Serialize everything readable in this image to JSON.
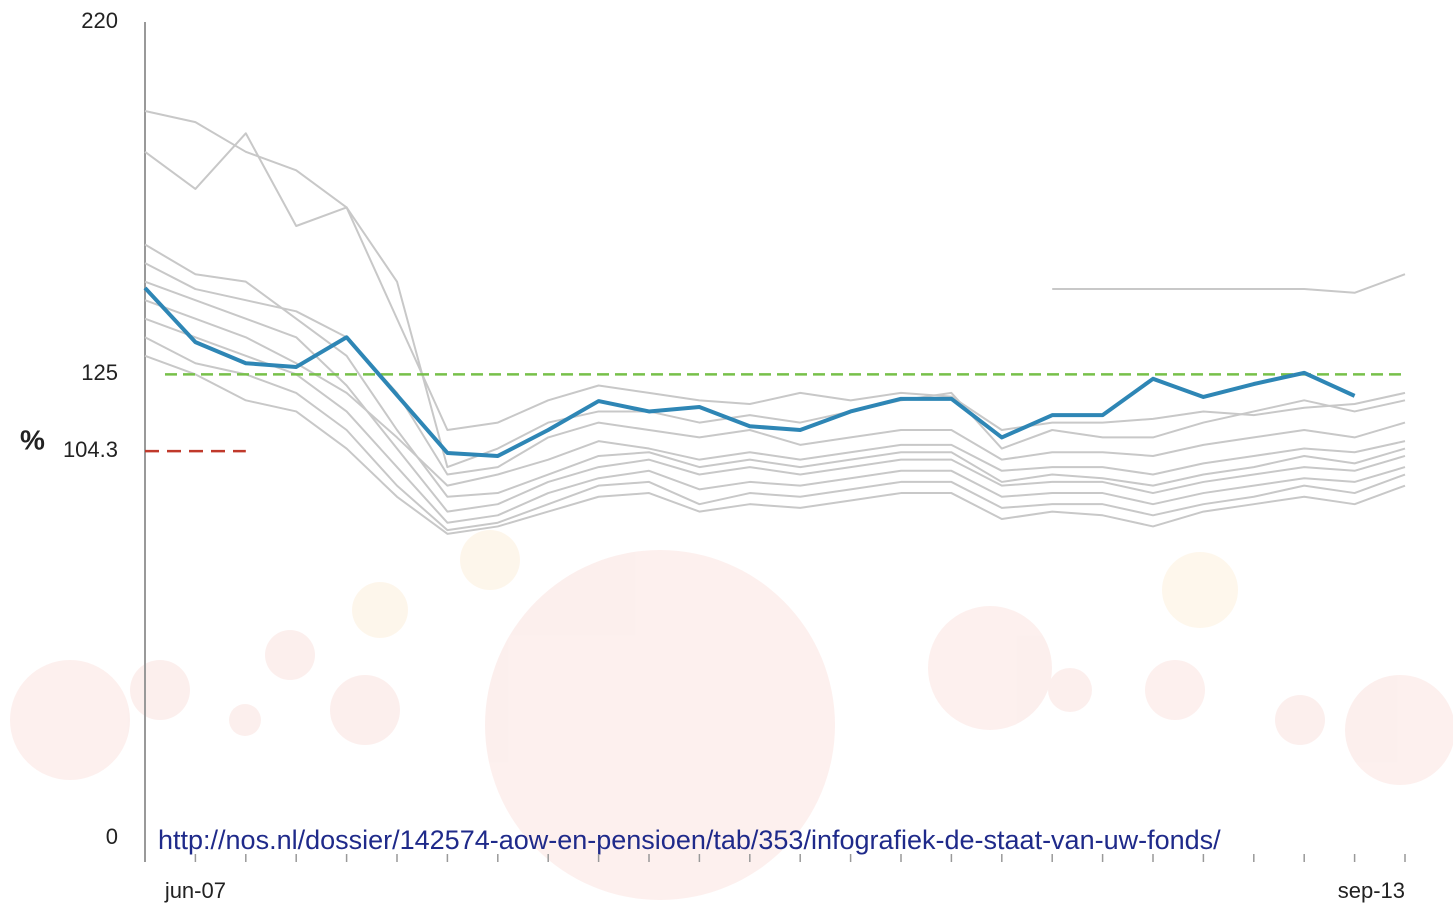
{
  "chart_data": {
    "type": "line",
    "y_label": "%",
    "annotation": "http://nos.nl/dossier/142574-aow-en-pensioen/tab/353/infografiek-de-staat-van-uw-fonds/",
    "categories": [
      null,
      "jun-07",
      null,
      null,
      null,
      null,
      null,
      null,
      null,
      null,
      null,
      null,
      null,
      null,
      null,
      null,
      null,
      null,
      null,
      null,
      null,
      null,
      null,
      null,
      null,
      "sep-13"
    ],
    "ylim": [
      0,
      220
    ],
    "yticks": [
      0,
      104.3,
      125,
      220
    ],
    "reference_lines": [
      {
        "value": 125,
        "color": "#77c04a"
      },
      {
        "value": 104.3,
        "color": "#c0392b"
      }
    ],
    "series": [
      {
        "color": "#c8c8c8",
        "values": [
          196,
          193,
          185,
          180,
          170,
          140,
          110,
          112,
          118,
          122,
          120,
          118,
          117,
          120,
          118,
          120,
          119,
          110,
          112,
          112,
          113,
          115,
          114,
          116,
          117,
          120
        ]
      },
      {
        "color": "#c8c8c8",
        "values": [
          185,
          175,
          190,
          165,
          170,
          150,
          100,
          105,
          112,
          115,
          115,
          112,
          114,
          112,
          115,
          118,
          120,
          105,
          110,
          108,
          108,
          112,
          115,
          118,
          115,
          118
        ]
      },
      {
        "color": "#c8c8c8",
        "values": [
          155,
          148,
          145,
          142,
          135,
          120,
          98,
          100,
          108,
          112,
          110,
          108,
          110,
          106,
          108,
          110,
          110,
          102,
          104,
          104,
          103,
          106,
          108,
          110,
          108,
          112
        ]
      },
      {
        "color": "#c8c8c8",
        "values": [
          160,
          152,
          150,
          140,
          130,
          110,
          92,
          93,
          98,
          103,
          104,
          100,
          102,
          100,
          102,
          104,
          104,
          96,
          98,
          97,
          95,
          98,
          100,
          103,
          101,
          105
        ]
      },
      {
        "color": "#c8c8c8",
        "values": [
          145,
          140,
          135,
          128,
          120,
          108,
          95,
          98,
          102,
          107,
          105,
          102,
          104,
          102,
          104,
          106,
          106,
          99,
          100,
          100,
          98,
          101,
          103,
          105,
          104,
          107
        ]
      },
      {
        "color": "#c8c8c8",
        "values": [
          150,
          145,
          140,
          135,
          122,
          105,
          88,
          90,
          96,
          100,
          102,
          98,
          100,
          98,
          100,
          102,
          102,
          95,
          96,
          96,
          93,
          96,
          98,
          100,
          99,
          103
        ]
      },
      {
        "color": "#c8c8c8",
        "values": [
          140,
          135,
          130,
          125,
          115,
          100,
          85,
          87,
          93,
          97,
          99,
          94,
          96,
          95,
          97,
          99,
          99,
          92,
          93,
          93,
          90,
          93,
          95,
          97,
          96,
          100
        ]
      },
      {
        "color": "#c8c8c8",
        "values": [
          135,
          128,
          125,
          120,
          110,
          95,
          83,
          85,
          90,
          95,
          96,
          90,
          93,
          92,
          94,
          96,
          96,
          89,
          90,
          90,
          87,
          90,
          92,
          95,
          93,
          98
        ]
      },
      {
        "color": "#c8c8c8",
        "values": [
          130,
          125,
          118,
          115,
          105,
          92,
          82,
          84,
          88,
          92,
          93,
          88,
          90,
          89,
          91,
          93,
          93,
          86,
          88,
          87,
          84,
          88,
          90,
          92,
          90,
          95
        ]
      },
      {
        "color": "#c8c8c8",
        "values": [
          null,
          null,
          null,
          null,
          null,
          null,
          null,
          null,
          null,
          null,
          null,
          null,
          null,
          null,
          null,
          null,
          null,
          null,
          148,
          148,
          148,
          148,
          148,
          148,
          147,
          152
        ]
      },
      {
        "color": "#2e86b5",
        "values": [
          148.3,
          133.7,
          128,
          127,
          135,
          119.4,
          103.8,
          103,
          110,
          117.8,
          115,
          116.2,
          111,
          110,
          115,
          118.4,
          118.4,
          108,
          114,
          114,
          123.8,
          118.9,
          122.4,
          125.4,
          119.2,
          null
        ]
      }
    ]
  }
}
